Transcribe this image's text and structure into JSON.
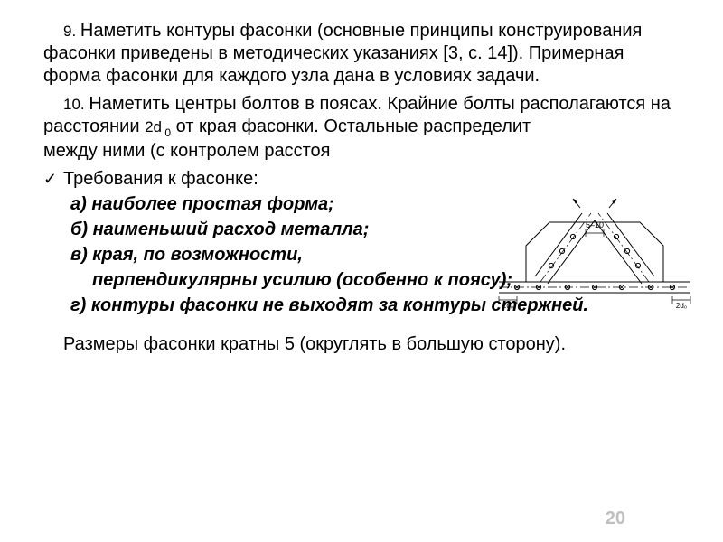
{
  "para9_num": "9. ",
  "para9": "Наметить контуры фасонки (основные принципы конструирования фасонки приведены в методических указаниях [3, с. 14]). Примерная форма фасонки для каждого узла дана в условиях задачи.",
  "para10_num": "10. ",
  "para10_a": "Наметить центры болтов в поясах. Крайние болты располагаются на расстоянии ",
  "para10_2d": "2d",
  "para10_sub": " 0",
  "para10_b": " от края фасонки. Остальные распределит",
  "para10_c": "между ними (с контролем расстоя",
  "check": "✓",
  "req_title": "Требования к фасонке:",
  "req_a": "а) наиболее простая форма;",
  "req_b": "б) наименьший расход металла;",
  "req_c": "в) края, по возможности,",
  "req_c2": "перпендикулярны усилию (особенно к поясу);",
  "req_d": "г) контуры фасонки не выходят за контуры стержней.",
  "footer_a": "Размеры фасонки кратны ",
  "footer_5": "5 ",
  "footer_b": "(округлять в большую сторону).",
  "page_number": "20",
  "diagram": {
    "label_top": "5–10",
    "label_left": "2d₀",
    "label_right": "2d₀",
    "stroke": "#000000",
    "stroke_width": 1,
    "bolt_radius": 2.6
  }
}
